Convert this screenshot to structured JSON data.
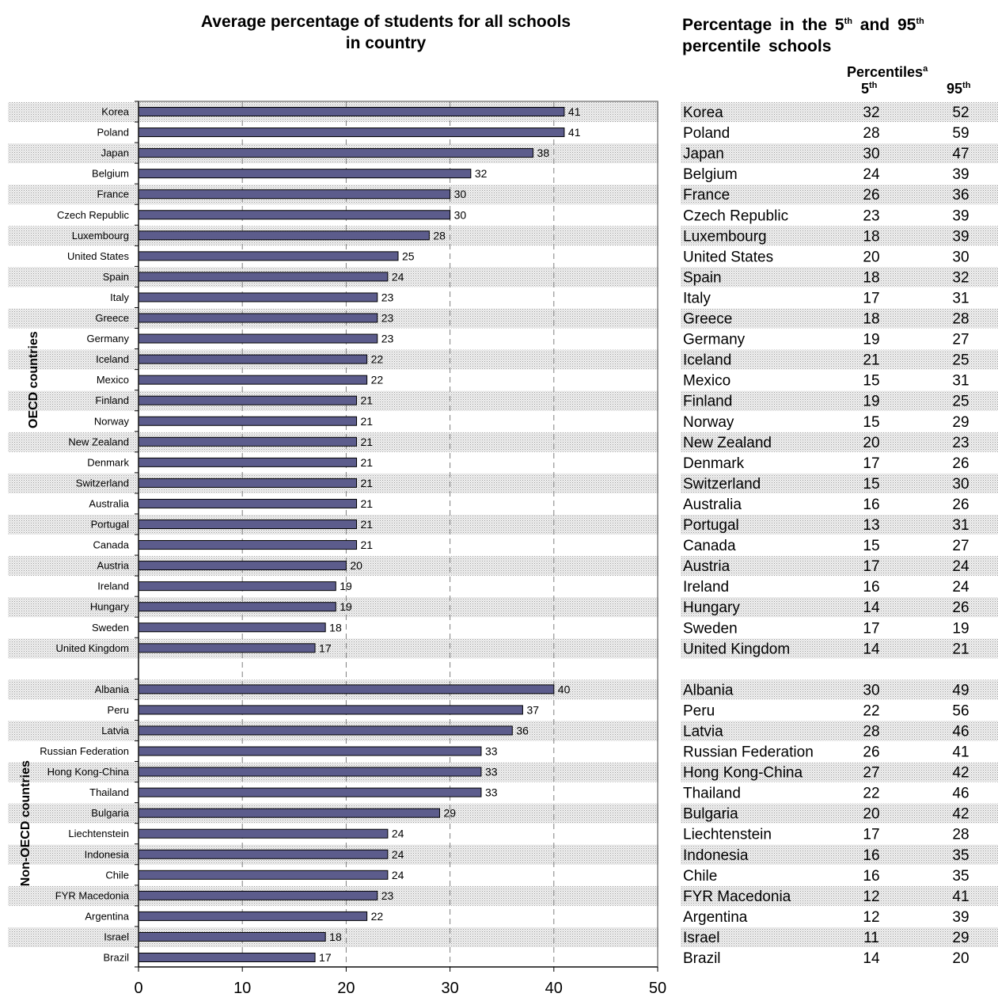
{
  "titles": {
    "left_line1": "Average percentage of students for all schools",
    "left_line2": "in country",
    "right_line1_a": "Percentage in the 5",
    "right_line1_sup1": "th",
    "right_line1_b": " and 95",
    "right_line1_sup2": "th",
    "right_line2": "percentile schools",
    "percentiles_label": "Percentiles",
    "percentiles_sup": "a",
    "col5_label": "5",
    "col5_sup": "th",
    "col95_label": "95",
    "col95_sup": "th"
  },
  "chart_data": {
    "type": "bar",
    "orientation": "horizontal",
    "xlim": [
      0,
      50
    ],
    "xticks": [
      0,
      10,
      20,
      30,
      40,
      50
    ],
    "grid": "vertical dashed",
    "groups": [
      {
        "name": "OECD countries",
        "rows": [
          {
            "country": "Korea",
            "avg": 41,
            "p5": 32,
            "p95": 52
          },
          {
            "country": "Poland",
            "avg": 41,
            "p5": 28,
            "p95": 59
          },
          {
            "country": "Japan",
            "avg": 38,
            "p5": 30,
            "p95": 47
          },
          {
            "country": "Belgium",
            "avg": 32,
            "p5": 24,
            "p95": 39
          },
          {
            "country": "France",
            "avg": 30,
            "p5": 26,
            "p95": 36
          },
          {
            "country": "Czech Republic",
            "avg": 30,
            "p5": 23,
            "p95": 39
          },
          {
            "country": "Luxembourg",
            "avg": 28,
            "p5": 18,
            "p95": 39
          },
          {
            "country": "United States",
            "avg": 25,
            "p5": 20,
            "p95": 30
          },
          {
            "country": "Spain",
            "avg": 24,
            "p5": 18,
            "p95": 32
          },
          {
            "country": "Italy",
            "avg": 23,
            "p5": 17,
            "p95": 31
          },
          {
            "country": "Greece",
            "avg": 23,
            "p5": 18,
            "p95": 28
          },
          {
            "country": "Germany",
            "avg": 23,
            "p5": 19,
            "p95": 27
          },
          {
            "country": "Iceland",
            "avg": 22,
            "p5": 21,
            "p95": 25
          },
          {
            "country": "Mexico",
            "avg": 22,
            "p5": 15,
            "p95": 31
          },
          {
            "country": "Finland",
            "avg": 21,
            "p5": 19,
            "p95": 25
          },
          {
            "country": "Norway",
            "avg": 21,
            "p5": 15,
            "p95": 29
          },
          {
            "country": "New Zealand",
            "avg": 21,
            "p5": 20,
            "p95": 23
          },
          {
            "country": "Denmark",
            "avg": 21,
            "p5": 17,
            "p95": 26
          },
          {
            "country": "Switzerland",
            "avg": 21,
            "p5": 15,
            "p95": 30
          },
          {
            "country": "Australia",
            "avg": 21,
            "p5": 16,
            "p95": 26
          },
          {
            "country": "Portugal",
            "avg": 21,
            "p5": 13,
            "p95": 31
          },
          {
            "country": "Canada",
            "avg": 21,
            "p5": 15,
            "p95": 27
          },
          {
            "country": "Austria",
            "avg": 20,
            "p5": 17,
            "p95": 24
          },
          {
            "country": "Ireland",
            "avg": 19,
            "p5": 16,
            "p95": 24
          },
          {
            "country": "Hungary",
            "avg": 19,
            "p5": 14,
            "p95": 26
          },
          {
            "country": "Sweden",
            "avg": 18,
            "p5": 17,
            "p95": 19
          },
          {
            "country": "United Kingdom",
            "avg": 17,
            "p5": 14,
            "p95": 21
          }
        ]
      },
      {
        "name": "Non-OECD countries",
        "rows": [
          {
            "country": "Albania",
            "avg": 40,
            "p5": 30,
            "p95": 49
          },
          {
            "country": "Peru",
            "avg": 37,
            "p5": 22,
            "p95": 56
          },
          {
            "country": "Latvia",
            "avg": 36,
            "p5": 28,
            "p95": 46
          },
          {
            "country": "Russian Federation",
            "avg": 33,
            "p5": 26,
            "p95": 41
          },
          {
            "country": "Hong Kong-China",
            "avg": 33,
            "p5": 27,
            "p95": 42
          },
          {
            "country": "Thailand",
            "avg": 33,
            "p5": 22,
            "p95": 46
          },
          {
            "country": "Bulgaria",
            "avg": 29,
            "p5": 20,
            "p95": 42
          },
          {
            "country": "Liechtenstein",
            "avg": 24,
            "p5": 17,
            "p95": 28
          },
          {
            "country": "Indonesia",
            "avg": 24,
            "p5": 16,
            "p95": 35
          },
          {
            "country": "Chile",
            "avg": 24,
            "p5": 16,
            "p95": 35
          },
          {
            "country": "FYR Macedonia",
            "avg": 23,
            "p5": 12,
            "p95": 41
          },
          {
            "country": "Argentina",
            "avg": 22,
            "p5": 12,
            "p95": 39
          },
          {
            "country": "Israel",
            "avg": 18,
            "p5": 11,
            "p95": 29
          },
          {
            "country": "Brazil",
            "avg": 17,
            "p5": 14,
            "p95": 20
          }
        ]
      }
    ],
    "colors": {
      "bar": "#5c5c8c",
      "bar_stroke": "#000000",
      "stripe": "#d9d9d9"
    }
  }
}
